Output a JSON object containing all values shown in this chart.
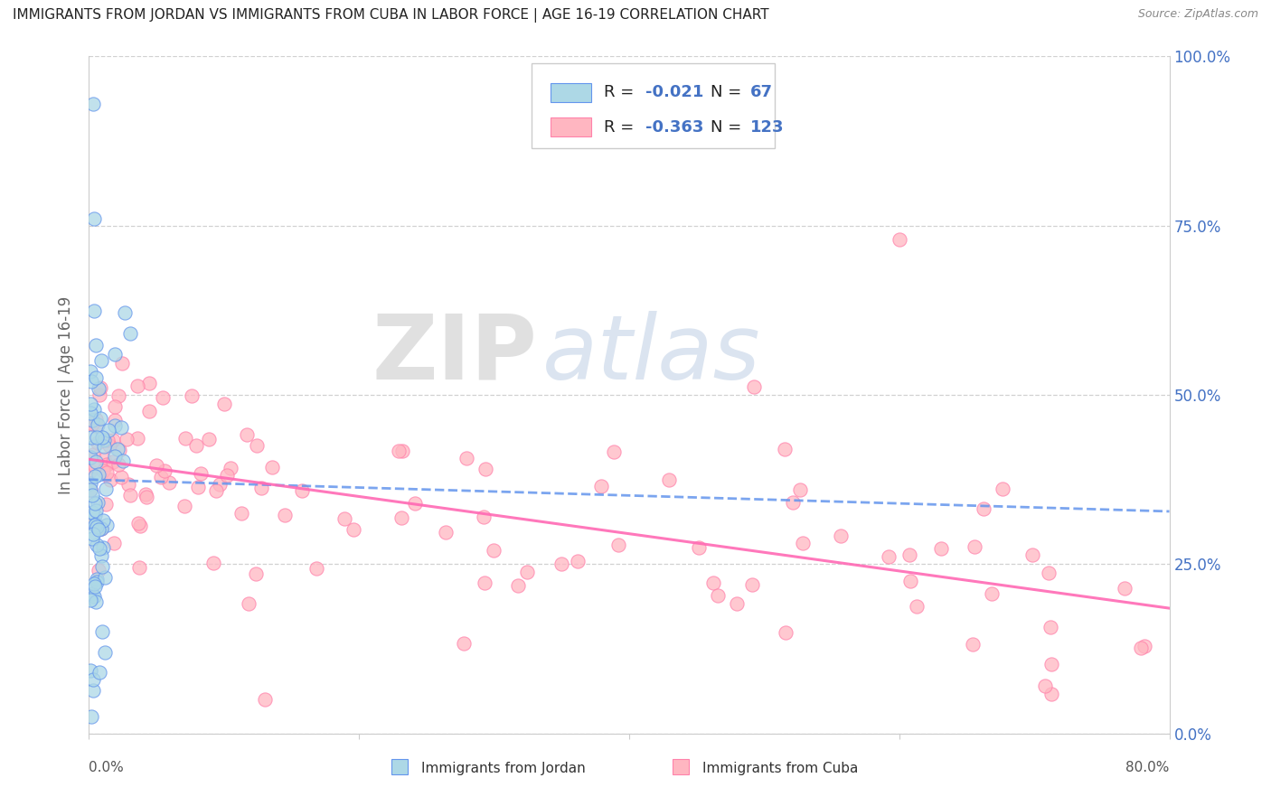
{
  "title": "IMMIGRANTS FROM JORDAN VS IMMIGRANTS FROM CUBA IN LABOR FORCE | AGE 16-19 CORRELATION CHART",
  "source": "Source: ZipAtlas.com",
  "ylabel": "In Labor Force | Age 16-19",
  "ytick_values": [
    0.0,
    0.25,
    0.5,
    0.75,
    1.0
  ],
  "ytick_labels": [
    "0.0%",
    "25.0%",
    "50.0%",
    "75.0%",
    "100.0%"
  ],
  "xlim": [
    0.0,
    0.8
  ],
  "ylim": [
    0.0,
    1.0
  ],
  "jordan_color": "#ADD8E6",
  "jordan_edge_color": "#6495ED",
  "cuba_color": "#FFB6C1",
  "cuba_edge_color": "#FF82AB",
  "jordan_R": -0.021,
  "jordan_N": 67,
  "cuba_R": -0.363,
  "cuba_N": 123,
  "jordan_trend_color": "#6495ED",
  "cuba_trend_color": "#FF69B4",
  "watermark_zip": "ZIP",
  "watermark_atlas": "atlas",
  "legend_jordan": "Immigrants from Jordan",
  "legend_cuba": "Immigrants from Cuba",
  "jordan_trend_start_y": 0.375,
  "jordan_trend_end_y": 0.328,
  "cuba_trend_start_y": 0.405,
  "cuba_trend_end_y": 0.185
}
